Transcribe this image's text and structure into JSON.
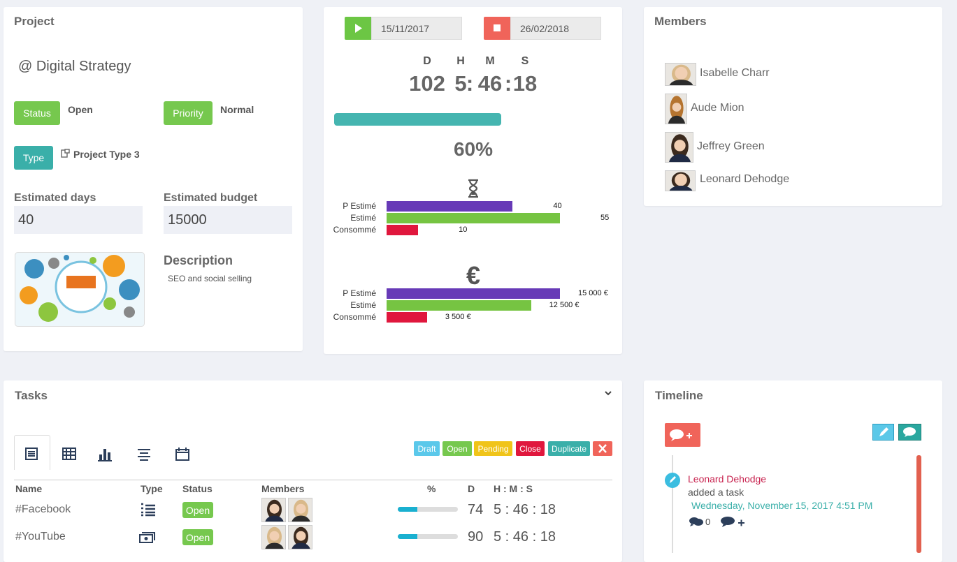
{
  "project": {
    "title": "Project",
    "name": "@ Digital Strategy",
    "status_label": "Status",
    "status": "Open",
    "priority_label": "Priority",
    "priority": "Normal",
    "type_label": "Type",
    "type": "Project Type 3",
    "estimated_days_label": "Estimated days",
    "estimated_days": 40,
    "estimated_budget_label": "Estimated budget",
    "estimated_budget": 15000,
    "description_label": "Description",
    "description": "SEO and social selling"
  },
  "timer": {
    "start_date": "15/11/2017",
    "end_date": "26/02/2018",
    "units": [
      "D",
      "H",
      "M",
      "S"
    ],
    "separator": ":",
    "days": 102,
    "hours": 5,
    "minutes": 46,
    "seconds": 18,
    "progress": {
      "value": 60,
      "label": "60%"
    },
    "time_chart": {
      "categories": [
        "P Estimé",
        "Estimé",
        "Consommé"
      ],
      "values": [
        40,
        55,
        10
      ],
      "colors": [
        "#673ab7",
        "#76c442",
        "#e0173d"
      ]
    },
    "budget_chart": {
      "categories": [
        "P Estimé",
        "Estimé",
        "Consommé"
      ],
      "values": [
        15000,
        12500,
        3500
      ],
      "value_labels": [
        "15 000 €",
        "12 500 €",
        "3 500 €"
      ],
      "colors": [
        "#673ab7",
        "#76c442",
        "#e0173d"
      ]
    }
  },
  "members": {
    "title": "Members",
    "list": [
      {
        "name": "Isabelle Charr"
      },
      {
        "name": "Aude Mion"
      },
      {
        "name": "Jeffrey Green"
      },
      {
        "name": "Leonard Dehodge"
      }
    ]
  },
  "tasks": {
    "title": "Tasks",
    "filters": [
      "Draft",
      "Open",
      "Pending",
      "Close",
      "Duplicate"
    ],
    "columns": [
      "Name",
      "Type",
      "Status",
      "Members",
      "%",
      "D",
      "H : M : S"
    ],
    "rows": [
      {
        "name": "#Facebook",
        "status": "Open",
        "progress": 33,
        "days": 74,
        "time": "5 : 46 : 18"
      },
      {
        "name": "#YouTube",
        "status": "Open",
        "progress": 33,
        "days": 90,
        "time": "5 : 46 : 18"
      }
    ]
  },
  "timeline": {
    "title": "Timeline",
    "entries": [
      {
        "author": "Leonard Dehodge",
        "action": "added a task",
        "date": "Wednesday, November 15, 2017 4:51 PM",
        "comments": 0
      }
    ]
  }
}
